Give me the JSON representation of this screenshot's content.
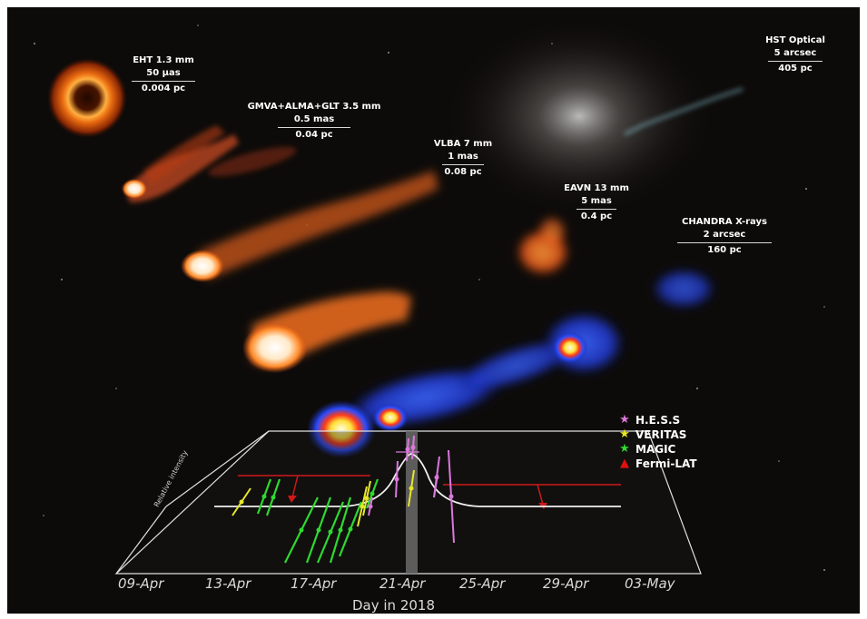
{
  "instruments": [
    {
      "name": "EHT 1.3 mm",
      "angular": "50 μas",
      "physical": "0.004 pc"
    },
    {
      "name": "GMVA+ALMA+GLT 3.5 mm",
      "angular": "0.5 mas",
      "physical": "0.04 pc"
    },
    {
      "name": "VLBA 7 mm",
      "angular": "1 mas",
      "physical": "0.08 pc"
    },
    {
      "name": "EAVN 13 mm",
      "angular": "5 mas",
      "physical": "0.4 pc"
    },
    {
      "name": "CHANDRA X-rays",
      "angular": "2 arcsec",
      "physical": "160 pc"
    },
    {
      "name": "HST Optical",
      "angular": "5 arcsec",
      "physical": "405 pc"
    }
  ],
  "legend": [
    {
      "label": "H.E.S.S",
      "color": "#dd77dd",
      "symbol": "★"
    },
    {
      "label": "VERITAS",
      "color": "#e6e62a",
      "symbol": "★"
    },
    {
      "label": "MAGIC",
      "color": "#2fd92f",
      "symbol": "★"
    },
    {
      "label": "Fermi-LAT",
      "color": "#e01010",
      "symbol": "▲"
    }
  ],
  "axis": {
    "xlabel": "Day in 2018",
    "ylabel": "Relative intensity",
    "ticks": [
      "09-Apr",
      "13-Apr",
      "17-Apr",
      "21-Apr",
      "25-Apr",
      "29-Apr",
      "03-May"
    ]
  }
}
